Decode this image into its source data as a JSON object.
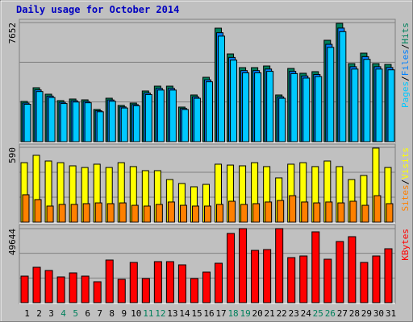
{
  "chart_data": [
    {
      "type": "bar",
      "title": "Daily usage for October 2014",
      "ylim": [
        0,
        7652
      ],
      "yticks": [
        7652
      ],
      "legend_separator": "/",
      "series": [
        {
          "name": "Hits",
          "color": "#00805c",
          "values": [
            2585,
            3464,
            3050,
            2637,
            2740,
            2688,
            2068,
            2792,
            2327,
            2482,
            3257,
            3567,
            3567,
            2223,
            2999,
            4136,
            7290,
            5635,
            4756,
            4756,
            4860,
            2999,
            4705,
            4395,
            4498,
            6514,
            7600,
            5015,
            5687,
            5015,
            4963
          ]
        },
        {
          "name": "Files",
          "color": "#0080ff",
          "values": [
            2482,
            3325,
            2928,
            2532,
            2630,
            2580,
            1985,
            2680,
            2234,
            2383,
            3127,
            3424,
            3424,
            2134,
            2879,
            3971,
            6998,
            5410,
            4566,
            4566,
            4666,
            2879,
            4517,
            4219,
            4318,
            6253,
            7296,
            4814,
            5460,
            4814,
            4764
          ]
        },
        {
          "name": "Pages",
          "color": "#00c8ff",
          "values": [
            2404,
            3222,
            2837,
            2452,
            2548,
            2500,
            1923,
            2597,
            2164,
            2308,
            3029,
            3317,
            3317,
            2067,
            2789,
            3846,
            6780,
            5241,
            4423,
            4423,
            4520,
            2789,
            4376,
            4087,
            4183,
            6058,
            7068,
            4664,
            5289,
            4664,
            4616
          ]
        }
      ]
    },
    {
      "type": "bar",
      "ylim": [
        0,
        590
      ],
      "yticks": [
        590
      ],
      "legend_separator": "/",
      "series": [
        {
          "name": "Visits",
          "color": "#ffff00",
          "values": [
            469,
            527,
            482,
            469,
            444,
            431,
            457,
            431,
            469,
            438,
            406,
            406,
            336,
            305,
            279,
            298,
            457,
            450,
            444,
            469,
            438,
            349,
            457,
            469,
            438,
            482,
            438,
            336,
            368,
            584,
            431
          ]
        },
        {
          "name": "Sites",
          "color": "#ff8000",
          "values": [
            216,
            178,
            127,
            140,
            140,
            146,
            152,
            146,
            152,
            133,
            127,
            140,
            159,
            133,
            127,
            127,
            140,
            165,
            140,
            146,
            159,
            171,
            209,
            159,
            152,
            159,
            152,
            165,
            133,
            209,
            146
          ]
        }
      ]
    },
    {
      "type": "bar",
      "ylim": [
        0,
        49644
      ],
      "yticks": [
        49644
      ],
      "categories": [
        "1",
        "2",
        "3",
        "4",
        "5",
        "6",
        "7",
        "8",
        "9",
        "10",
        "11",
        "12",
        "13",
        "14",
        "15",
        "16",
        "17",
        "18",
        "19",
        "20",
        "21",
        "22",
        "23",
        "24",
        "25",
        "26",
        "27",
        "28",
        "29",
        "30",
        "31"
      ],
      "category_colors": [
        "#000000",
        "#000000",
        "#000000",
        "#00805c",
        "#00805c",
        "#000000",
        "#000000",
        "#000000",
        "#000000",
        "#000000",
        "#00805c",
        "#00805c",
        "#000000",
        "#000000",
        "#000000",
        "#000000",
        "#000000",
        "#00805c",
        "#00805c",
        "#000000",
        "#000000",
        "#000000",
        "#000000",
        "#000000",
        "#00805c",
        "#00805c",
        "#000000",
        "#000000",
        "#000000",
        "#000000",
        "#000000"
      ],
      "series": [
        {
          "name": "KBytes",
          "color": "#ff0000",
          "values": [
            17807,
            23742,
            21584,
            17267,
            19965,
            17807,
            14030,
            28599,
            15648,
            26980,
            16188,
            27520,
            27520,
            25361,
            16188,
            20505,
            26440,
            46406,
            49644,
            35074,
            35614,
            49644,
            30218,
            31297,
            47485,
            29138,
            41010,
            44248,
            26980,
            31297,
            36153
          ]
        }
      ]
    }
  ]
}
